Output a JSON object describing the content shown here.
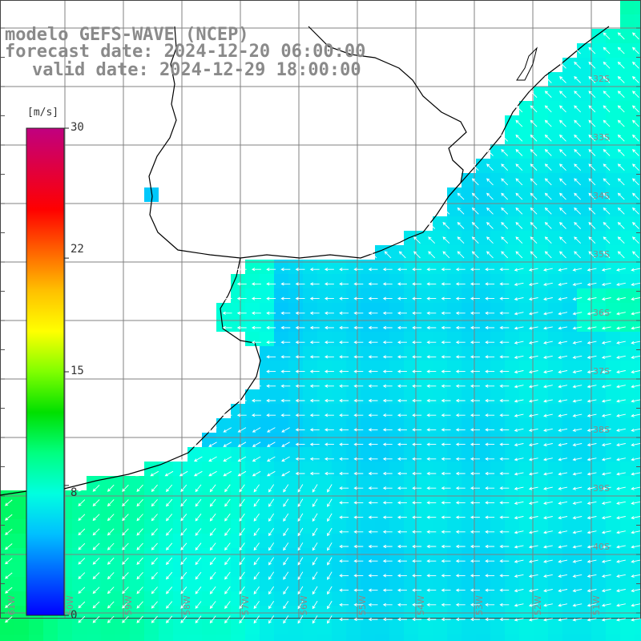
{
  "title": {
    "line1": "modelo GEFS-WAVE (NCEP)",
    "line2": "forecast date: 2024-12-20 06:00:00",
    "line3": "valid date: 2024-12-29 18:00:00"
  },
  "colorbar": {
    "unit": "[m/s]",
    "ticks": [
      "30",
      "22",
      "15",
      "8",
      "0"
    ],
    "min": 0,
    "max": 30,
    "colors": [
      "#0000ff",
      "#0060ff",
      "#00c0ff",
      "#00ffe0",
      "#00ff80",
      "#00e000",
      "#80ff00",
      "#ffff00",
      "#ffc000",
      "#ff6000",
      "#ff0000",
      "#e00040",
      "#c00080"
    ]
  },
  "grid": {
    "lat_labels": [
      "32S",
      "33S",
      "34S",
      "35S",
      "36S",
      "37S",
      "38S",
      "39S",
      "40S"
    ],
    "lon_labels": [
      "61W",
      "60W",
      "59W",
      "58W",
      "57W",
      "56W",
      "55W",
      "54W",
      "53W",
      "52W",
      "51W"
    ]
  },
  "colors": {
    "land": "#ffffff",
    "coast": "#000000",
    "grid_line": "#808080",
    "arrow": "#ffffff",
    "label": "#8a8a8a"
  },
  "chart_data": {
    "type": "heatmap",
    "variable": "wind speed",
    "unit": "[m/s]",
    "zlim": [
      0,
      30
    ],
    "wind_field_samples": [
      {
        "region": "north-east offshore",
        "speed_ms": 7.5,
        "direction": "from south-east"
      },
      {
        "region": "central offshore",
        "speed_ms": 6,
        "direction": "from east"
      },
      {
        "region": "south-east offshore",
        "speed_ms": 5,
        "direction": "from east"
      },
      {
        "region": "south-west near coast",
        "speed_ms": 10,
        "direction": "from north-east"
      },
      {
        "region": "river estuary",
        "speed_ms": 9,
        "direction": "from south-east"
      }
    ]
  }
}
